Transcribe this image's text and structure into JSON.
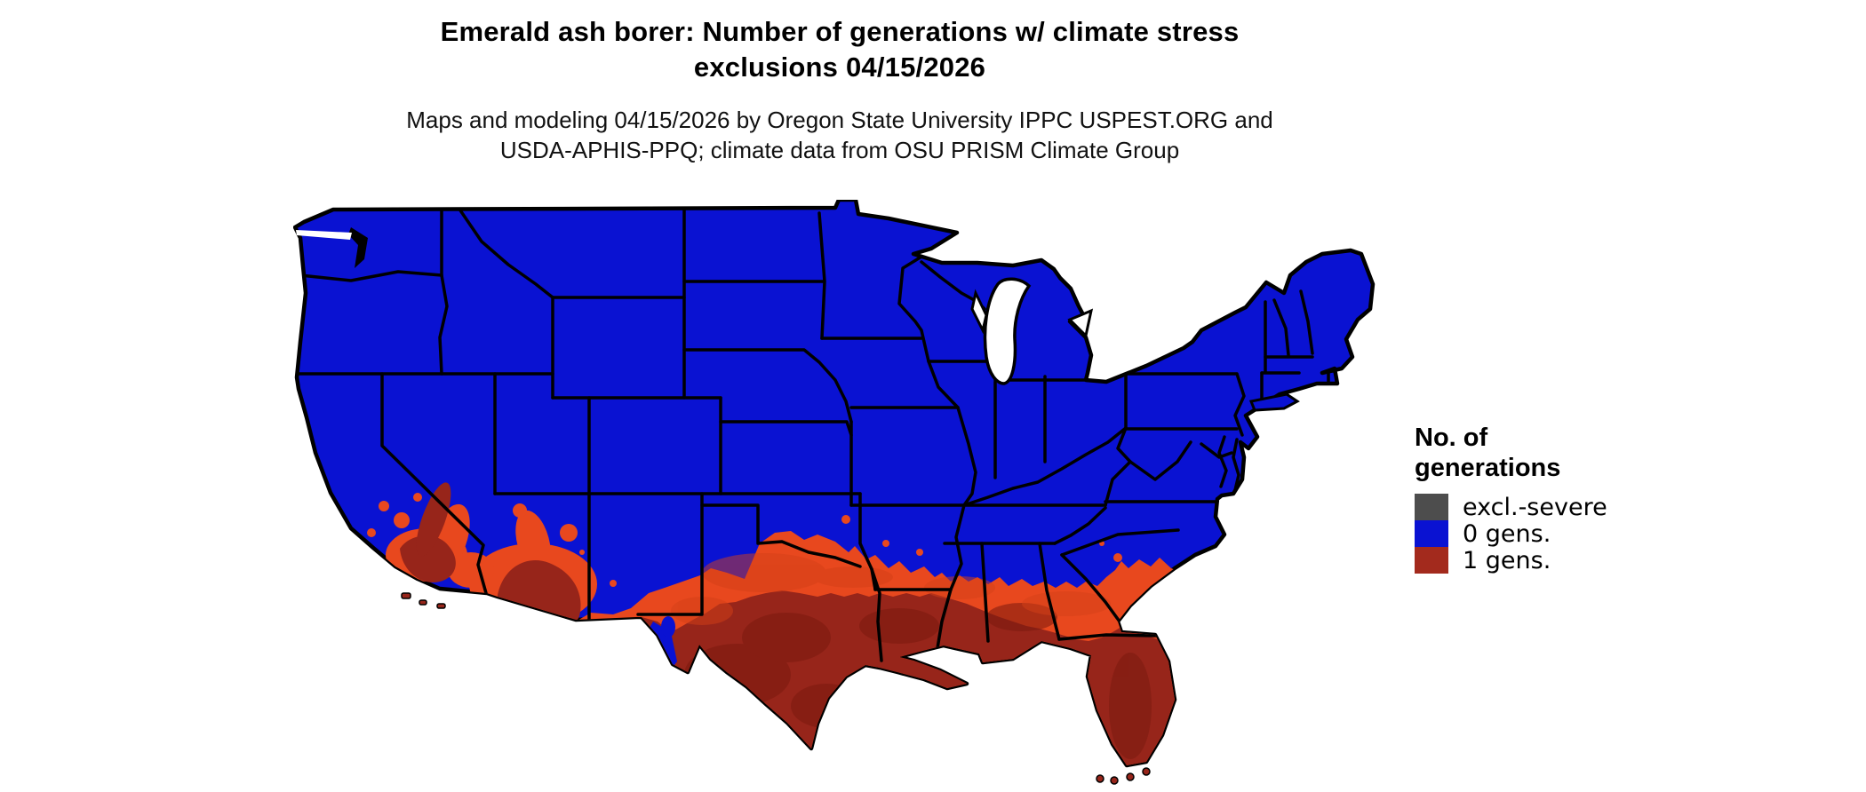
{
  "title": {
    "line1": "Emerald ash borer: Number of generations w/ climate stress",
    "line2": "exclusions 04/15/2026"
  },
  "subtitle": {
    "line1": "Maps and modeling 04/15/2026 by Oregon State University IPPC USPEST.ORG and",
    "line2": "USDA-APHIS-PPQ; climate data from OSU PRISM Climate Group"
  },
  "legend": {
    "title_line1": "No. of",
    "title_line2": "generations",
    "items": [
      {
        "label": "excl.-severe",
        "color": "#4D4D4D"
      },
      {
        "label": "0 gens.",
        "color": "#0A12D2"
      },
      {
        "label": "1 gens.",
        "color": "#A32A1D"
      }
    ]
  },
  "map": {
    "kind": "choropleth raster map of contiguous United States",
    "regions": [
      {
        "name": "0 generations",
        "color": "#0A12D2",
        "extent": "northern and central United States"
      },
      {
        "name": "1 generation (core)",
        "color": "#97251A",
        "extent": "southern Texas, Gulf Coast, Florida, southern Arizona and southern California"
      },
      {
        "name": "1 generation (edge band)",
        "color": "#E8481E",
        "extent": "transition band across the southern states"
      }
    ],
    "colors": {
      "background": "#FFFFFF",
      "state_borders": "#000000",
      "zero_generations": "#0A12D2",
      "one_generation_core": "#97251A",
      "one_generation_edge": "#E8481E",
      "exclusion": "#4D4D4D"
    }
  }
}
